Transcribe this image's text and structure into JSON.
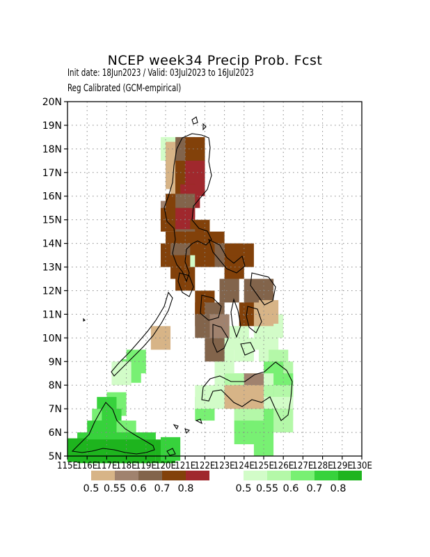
{
  "title": "NCEP week34 Precip Prob. Fcst",
  "subtitle_line1": "Init date: 18Jun2023 / Valid: 03Jul2023 to 16Jul2023",
  "subtitle_line2": "Reg Calibrated (GCM-empirical)",
  "lat_labels": [
    "5N",
    "6N",
    "7N",
    "8N",
    "9N",
    "10N",
    "11N",
    "12N",
    "13N",
    "14N",
    "15N",
    "16N",
    "17N",
    "18N",
    "19N",
    "20N"
  ],
  "lon_labels": [
    "115E",
    "116E",
    "117E",
    "118E",
    "119E",
    "120E",
    "121E",
    "122E",
    "123E",
    "124E",
    "125E",
    "126E",
    "127E",
    "128E",
    "129E",
    "130E"
  ],
  "legend_dry": {
    "colors": [
      "#d7b487",
      "#a0826e",
      "#82644b",
      "#82410a",
      "#a0282d"
    ],
    "labels": [
      "0.5",
      "0.55",
      "0.6",
      "0.7",
      "0.8"
    ]
  },
  "legend_wet": {
    "colors": [
      "#d2fcc8",
      "#b4f8a8",
      "#78f073",
      "#37d23c",
      "#1eb41e"
    ],
    "labels": [
      "0.5",
      "0.55",
      "0.6",
      "0.7",
      "0.8"
    ]
  },
  "map_extent": {
    "lon": [
      115,
      130
    ],
    "lat": [
      5,
      20
    ]
  },
  "cells_dry": [
    [
      120.5,
      17.8,
      0
    ],
    [
      120.5,
      17.3,
      0
    ],
    [
      120.5,
      16.8,
      0
    ],
    [
      120.75,
      16.3,
      0
    ],
    [
      120.5,
      15.3,
      1
    ],
    [
      120.25,
      15.3,
      1
    ],
    [
      121.0,
      18.0,
      2
    ],
    [
      121.5,
      18.0,
      3
    ],
    [
      121.0,
      17.5,
      2
    ],
    [
      121.5,
      17.5,
      3
    ],
    [
      121.0,
      17.0,
      3
    ],
    [
      121.5,
      17.0,
      4
    ],
    [
      121.0,
      16.5,
      3
    ],
    [
      121.5,
      16.5,
      4
    ],
    [
      121.0,
      16.0,
      3
    ],
    [
      121.25,
      16.0,
      4
    ],
    [
      120.5,
      15.6,
      3
    ],
    [
      121.0,
      15.6,
      2
    ],
    [
      120.25,
      15.0,
      3
    ],
    [
      120.75,
      15.0,
      3
    ],
    [
      121.0,
      15.0,
      4
    ],
    [
      121.75,
      14.5,
      3
    ],
    [
      121.0,
      14.1,
      2
    ],
    [
      120.5,
      14.0,
      3
    ],
    [
      121.5,
      14.0,
      3
    ],
    [
      122.5,
      14.0,
      3
    ],
    [
      120.25,
      13.5,
      3
    ],
    [
      120.75,
      13.5,
      2
    ],
    [
      122.0,
      13.5,
      3
    ],
    [
      123.0,
      13.5,
      2
    ],
    [
      123.5,
      13.5,
      3
    ],
    [
      124.0,
      13.5,
      3
    ],
    [
      120.75,
      13.0,
      3
    ],
    [
      121.0,
      12.5,
      3
    ],
    [
      123.5,
      13.0,
      3
    ],
    [
      123.25,
      12.0,
      2
    ],
    [
      124.5,
      12.0,
      2
    ],
    [
      125.0,
      12.0,
      2
    ],
    [
      122.0,
      11.5,
      3
    ],
    [
      124.5,
      11.5,
      2
    ],
    [
      125.0,
      11.5,
      2
    ],
    [
      122.0,
      11.0,
      3
    ],
    [
      122.5,
      11.0,
      2
    ],
    [
      124.25,
      11.0,
      3
    ],
    [
      125.0,
      11.0,
      0
    ],
    [
      122.0,
      10.5,
      2
    ],
    [
      122.75,
      10.5,
      1
    ],
    [
      122.5,
      9.5,
      2
    ],
    [
      124.5,
      8.0,
      1
    ],
    [
      124.0,
      7.5,
      0
    ],
    [
      124.5,
      7.5,
      0
    ],
    [
      123.5,
      7.5,
      0
    ]
  ],
  "cells_wet": [
    [
      120.25,
      18.0,
      0
    ],
    [
      121.0,
      13.5,
      0
    ],
    [
      123.25,
      10.0,
      0
    ],
    [
      123.75,
      10.0,
      0
    ],
    [
      123.0,
      9.0,
      0
    ],
    [
      124.0,
      9.5,
      0
    ],
    [
      125.5,
      10.5,
      0
    ],
    [
      125.0,
      10.0,
      0
    ],
    [
      125.25,
      9.5,
      0
    ],
    [
      125.75,
      9.0,
      1
    ],
    [
      126.0,
      8.5,
      1
    ],
    [
      125.5,
      8.5,
      2
    ],
    [
      126.0,
      8.0,
      2
    ],
    [
      125.0,
      8.0,
      0
    ],
    [
      123.0,
      8.0,
      0
    ],
    [
      123.5,
      8.0,
      1
    ],
    [
      124.0,
      8.0,
      1
    ],
    [
      125.5,
      7.5,
      2
    ],
    [
      126.0,
      7.5,
      1
    ],
    [
      125.0,
      7.5,
      1
    ],
    [
      123.0,
      7.5,
      0
    ],
    [
      122.0,
      7.0,
      2
    ],
    [
      122.0,
      7.5,
      0
    ],
    [
      124.0,
      7.0,
      1
    ],
    [
      124.5,
      7.0,
      1
    ],
    [
      125.0,
      7.0,
      1
    ],
    [
      125.5,
      7.0,
      0
    ],
    [
      126.0,
      7.0,
      0
    ],
    [
      124.0,
      6.5,
      1
    ],
    [
      124.5,
      6.5,
      1
    ],
    [
      125.0,
      6.5,
      1
    ],
    [
      125.5,
      6.5,
      2
    ],
    [
      126.0,
      6.5,
      1
    ],
    [
      124.0,
      6.0,
      2
    ],
    [
      124.5,
      6.0,
      2
    ],
    [
      125.0,
      5.5,
      2
    ],
    [
      118.5,
      9.0,
      2
    ],
    [
      118.25,
      8.6,
      2
    ],
    [
      117.75,
      8.5,
      0
    ],
    [
      117.5,
      7.2,
      2
    ],
    [
      117.0,
      7.0,
      3
    ],
    [
      116.75,
      6.5,
      2
    ],
    [
      117.25,
      6.5,
      3
    ],
    [
      116.5,
      6.0,
      3
    ],
    [
      117.0,
      6.0,
      3
    ],
    [
      117.5,
      6.0,
      3
    ],
    [
      118.0,
      6.0,
      2
    ],
    [
      116.0,
      5.5,
      3
    ],
    [
      116.5,
      5.5,
      3
    ],
    [
      117.0,
      5.5,
      3
    ],
    [
      117.5,
      5.5,
      3
    ],
    [
      118.0,
      5.5,
      3
    ],
    [
      118.5,
      5.5,
      3
    ],
    [
      119.0,
      5.5,
      3
    ],
    [
      115.5,
      5.25,
      4
    ],
    [
      116.0,
      5.2,
      4
    ],
    [
      116.5,
      5.2,
      4
    ],
    [
      117.0,
      5.2,
      4
    ],
    [
      117.5,
      5.2,
      4
    ],
    [
      118.0,
      5.2,
      4
    ],
    [
      118.5,
      5.2,
      4
    ],
    [
      119.0,
      5.2,
      4
    ],
    [
      120.0,
      5.2,
      4
    ],
    [
      120.25,
      5.3,
      3
    ]
  ],
  "cells_dry_extra_tan": [
    [
      119.75,
      10.0,
      0
    ],
    [
      125.25,
      11.1,
      0
    ]
  ]
}
